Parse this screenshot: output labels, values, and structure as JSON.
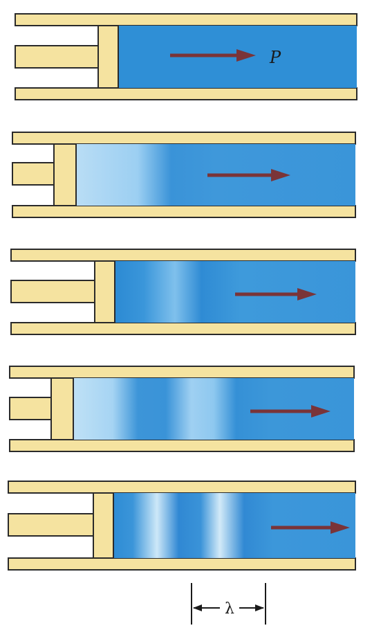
{
  "figure": {
    "pressure_label": "P",
    "wavelength_label": "λ",
    "colors": {
      "tube_wall": "#f5e3a0",
      "outline": "#2a2a2a",
      "fluid_dense": "#2f8fd6",
      "fluid_light": "#b6dcf5",
      "arrow": "#7a3438"
    },
    "panels": [
      {
        "stage": 1,
        "bands": []
      },
      {
        "stage": 2,
        "bands": [
          "rarefaction"
        ]
      },
      {
        "stage": 3,
        "bands": [
          "rarefaction",
          "compression"
        ]
      },
      {
        "stage": 4,
        "bands": [
          "rarefaction",
          "compression",
          "rarefaction"
        ]
      },
      {
        "stage": 5,
        "bands": [
          "compression",
          "rarefaction",
          "compression",
          "rarefaction"
        ]
      }
    ]
  }
}
